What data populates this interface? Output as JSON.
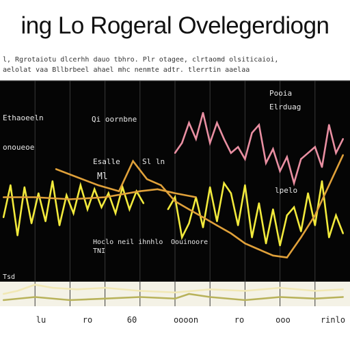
{
  "title": "ing Lo Rogeral Ovelegerdiogn",
  "subtitle": "l, Rgrotaiotu dlcerhh dauo tbhro. Plr otagee, clrtaomd olsiticaioi,\naelolat vaa Bllbrbeel ahael mhc nenmte adtr. tlerrtin aaelaa",
  "colors": {
    "background": "#ffffff",
    "plot_background": "#050505",
    "pink": "#e98fa2",
    "yellow": "#f2ea3c",
    "orange": "#e0a13a",
    "olive": "#b8b25a",
    "cream": "#f1e8b5",
    "grid": "#3a3a3a"
  },
  "chart_data": {
    "type": "line",
    "title": "ing Lo Rogeral Ovelegerdiogn",
    "xlabel": "",
    "ylabel": "",
    "xlim": [
      0,
      100
    ],
    "ylim": [
      0,
      100
    ],
    "grid": true,
    "x_tick_labels": [
      "lu",
      "ro",
      "60",
      "oooon",
      "ro",
      "ooo",
      "rinlo"
    ],
    "annotations": [
      "Pooia",
      "Elrduag",
      "Qi oornbne",
      "Ethaoeeln",
      "lpelo",
      "Ml",
      "Hoclo neil ihnhlo",
      "onoueoe",
      "Esalle",
      "Sl ln",
      "Oouinoore",
      "TNI",
      "Tsd"
    ],
    "series": [
      {
        "color": "pink",
        "x": [
          50,
          52,
          54,
          56,
          58,
          60,
          62,
          64,
          66,
          68,
          70,
          72,
          74,
          76,
          78,
          80,
          82,
          84,
          86,
          88,
          90,
          92,
          94,
          96,
          98
        ],
        "y": [
          64,
          69,
          79,
          71,
          84,
          69,
          79,
          71,
          64,
          67,
          61,
          74,
          78,
          59,
          66,
          55,
          62,
          49,
          61,
          64,
          67,
          57,
          78,
          64,
          71
        ]
      },
      {
        "color": "yellow",
        "x": [
          1,
          3,
          5,
          7,
          9,
          11,
          13,
          15,
          17,
          19,
          21,
          23,
          25,
          27,
          29,
          31,
          33,
          35,
          37,
          39,
          41
        ],
        "y": [
          32,
          48,
          23,
          47,
          29,
          44,
          30,
          50,
          28,
          43,
          34,
          48,
          36,
          46,
          37,
          44,
          34,
          47,
          36,
          45,
          39
        ]
      },
      {
        "color": "yellow",
        "x": [
          48,
          50,
          52,
          54,
          56,
          58,
          60,
          62,
          64,
          66,
          68,
          70,
          72,
          74,
          76,
          78,
          80,
          82,
          84,
          86,
          88,
          90,
          92,
          94,
          96,
          98
        ],
        "y": [
          36,
          42,
          22,
          29,
          42,
          27,
          47,
          30,
          49,
          44,
          28,
          48,
          22,
          39,
          19,
          36,
          18,
          33,
          37,
          25,
          44,
          28,
          50,
          22,
          33,
          24
        ]
      },
      {
        "color": "orange",
        "x": [
          16,
          22,
          28,
          34,
          38,
          42,
          46,
          50,
          54,
          58,
          62,
          66,
          70,
          74,
          78,
          82,
          86,
          90,
          94,
          98
        ],
        "y": [
          56,
          52,
          48,
          45,
          60,
          51,
          48,
          40,
          36,
          32,
          28,
          24,
          19,
          16,
          13,
          12,
          22,
          33,
          48,
          63
        ]
      },
      {
        "color": "orange",
        "x": [
          1,
          10,
          20,
          30,
          40,
          45,
          50,
          56
        ],
        "y": [
          42,
          42,
          41,
          42,
          45,
          46,
          44,
          42
        ]
      },
      {
        "color": "olive",
        "x": [
          1,
          10,
          20,
          30,
          40,
          50,
          54,
          60,
          70,
          80,
          90,
          98
        ],
        "y": [
          4,
          6,
          4,
          5,
          6,
          5,
          8,
          6,
          4,
          6,
          5,
          6
        ]
      },
      {
        "color": "cream",
        "x": [
          1,
          5,
          10,
          15,
          22,
          30,
          40,
          50,
          60,
          70,
          80,
          90,
          98
        ],
        "y": [
          8,
          10,
          14,
          12,
          11,
          12,
          10,
          9,
          11,
          10,
          12,
          10,
          11
        ]
      }
    ]
  }
}
